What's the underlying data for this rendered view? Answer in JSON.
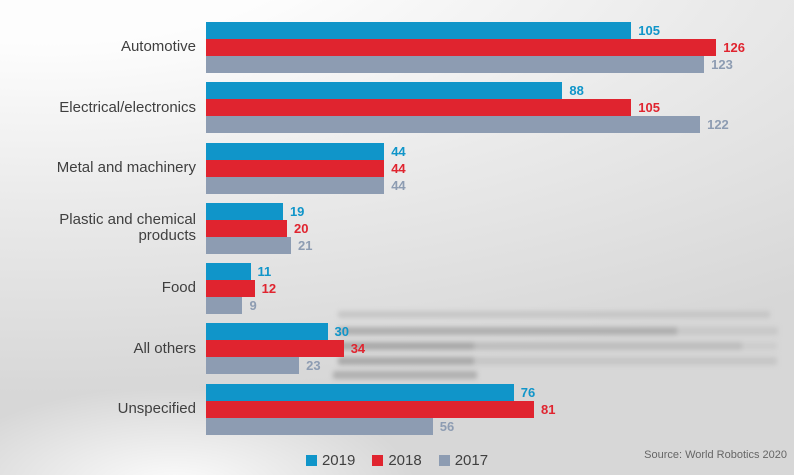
{
  "chart_data": {
    "type": "bar",
    "orientation": "horizontal",
    "title": "",
    "categories": [
      "Automotive",
      "Electrical/electronics",
      "Metal and machinery",
      "Plastic and chemical products",
      "Food",
      "All others",
      "Unspecified"
    ],
    "series": [
      {
        "name": "2019",
        "color": "#1095c9",
        "values": [
          105,
          88,
          44,
          19,
          11,
          30,
          76
        ]
      },
      {
        "name": "2018",
        "color": "#e0242f",
        "values": [
          126,
          105,
          44,
          20,
          12,
          34,
          81
        ]
      },
      {
        "name": "2017",
        "color": "#8d9cb2",
        "values": [
          123,
          122,
          44,
          21,
          9,
          23,
          56
        ]
      }
    ],
    "value_labels": true,
    "xlim": [
      0,
      145
    ],
    "grid": false,
    "legend_position": "bottom-center",
    "source": "Source: World Robotics 2020"
  }
}
